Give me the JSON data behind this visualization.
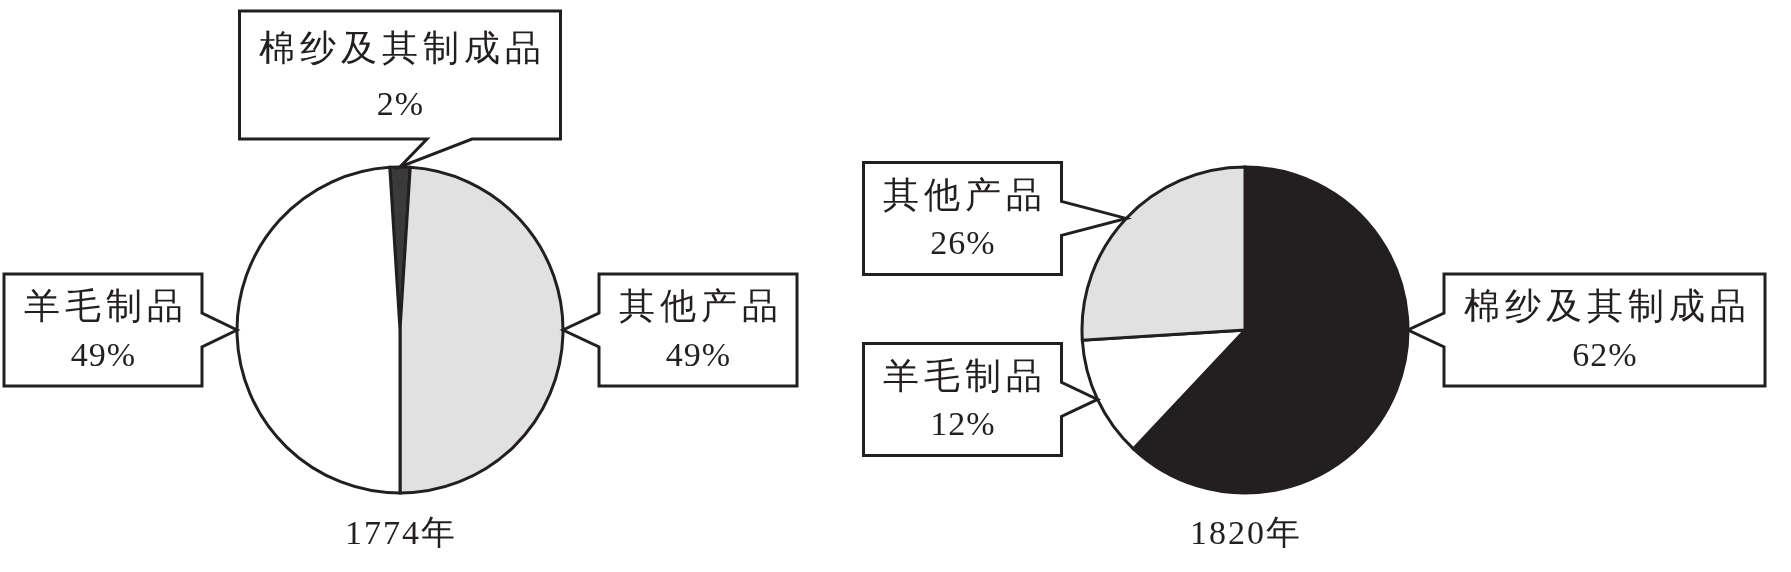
{
  "chart_data": [
    {
      "type": "pie",
      "title": "1774年",
      "categories": [
        "棉纱及其制成品",
        "其他产品",
        "羊毛制品"
      ],
      "values": [
        2,
        49,
        49
      ],
      "colors": [
        "#3a3a3a",
        "#e1e1e1",
        "#ffffff"
      ],
      "value_labels": [
        "2%",
        "49%",
        "49%"
      ]
    },
    {
      "type": "pie",
      "title": "1820年",
      "categories": [
        "棉纱及其制成品",
        "羊毛制品",
        "其他产品"
      ],
      "values": [
        62,
        12,
        26
      ],
      "colors": [
        "#231f20",
        "#ffffff",
        "#e1e1e1"
      ],
      "value_labels": [
        "62%",
        "12%",
        "26%"
      ]
    }
  ]
}
